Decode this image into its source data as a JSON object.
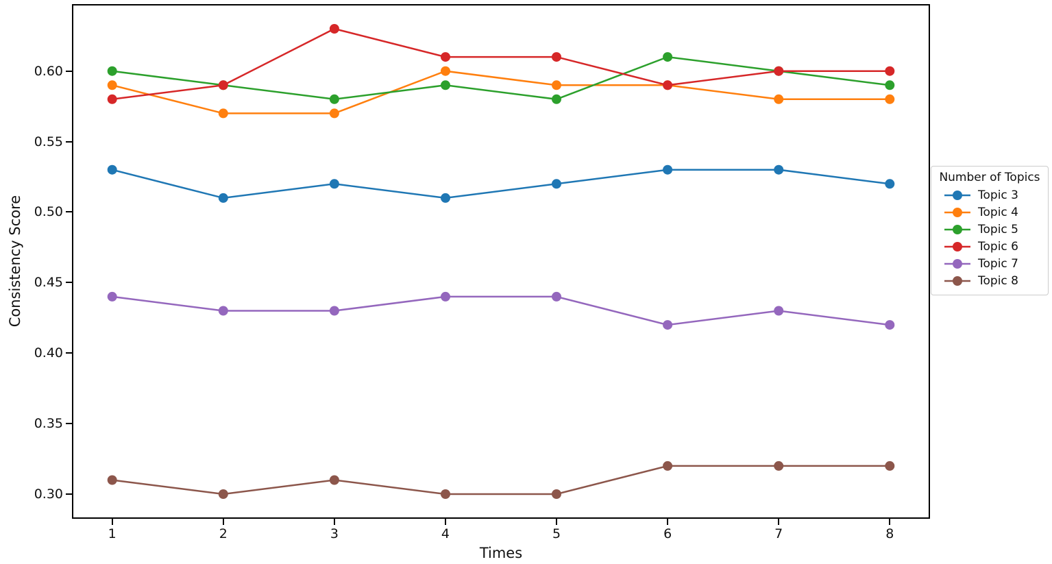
{
  "figure": {
    "background": "#ffffff",
    "axis_color": "#000000",
    "text_color": "#111111"
  },
  "chart_data": {
    "type": "line",
    "title": "",
    "xlabel": "Times",
    "ylabel": "Consistency Score",
    "x": [
      1,
      2,
      3,
      4,
      5,
      6,
      7,
      8
    ],
    "xtick_labels": [
      "1",
      "2",
      "3",
      "4",
      "5",
      "6",
      "7",
      "8"
    ],
    "xlim": [
      0.65,
      8.35
    ],
    "ylim": [
      0.2835,
      0.6465
    ],
    "yticks": [
      0.3,
      0.35,
      0.4,
      0.45,
      0.5,
      0.55,
      0.6
    ],
    "ytick_labels": [
      "0.30",
      "0.35",
      "0.40",
      "0.45",
      "0.50",
      "0.55",
      "0.60"
    ],
    "grid": false,
    "marker": "circle",
    "marker_radius": 7,
    "line_width": 2.5,
    "legend": {
      "title": "Number of Topics",
      "position": "right-outside"
    },
    "series": [
      {
        "name": "Topic 3",
        "color": "#1f77b4",
        "values": [
          0.53,
          0.51,
          0.52,
          0.51,
          0.52,
          0.53,
          0.53,
          0.52
        ]
      },
      {
        "name": "Topic 4",
        "color": "#ff7f0e",
        "values": [
          0.59,
          0.57,
          0.57,
          0.6,
          0.59,
          0.59,
          0.58,
          0.58
        ]
      },
      {
        "name": "Topic 5",
        "color": "#2ca02c",
        "values": [
          0.6,
          0.59,
          0.58,
          0.59,
          0.58,
          0.61,
          0.6,
          0.59
        ]
      },
      {
        "name": "Topic 6",
        "color": "#d62728",
        "values": [
          0.58,
          0.59,
          0.63,
          0.61,
          0.61,
          0.59,
          0.6,
          0.6
        ]
      },
      {
        "name": "Topic 7",
        "color": "#9467bd",
        "values": [
          0.44,
          0.43,
          0.43,
          0.44,
          0.44,
          0.42,
          0.43,
          0.42
        ]
      },
      {
        "name": "Topic 8",
        "color": "#8c564b",
        "values": [
          0.31,
          0.3,
          0.31,
          0.3,
          0.3,
          0.32,
          0.32,
          0.32
        ]
      }
    ]
  }
}
